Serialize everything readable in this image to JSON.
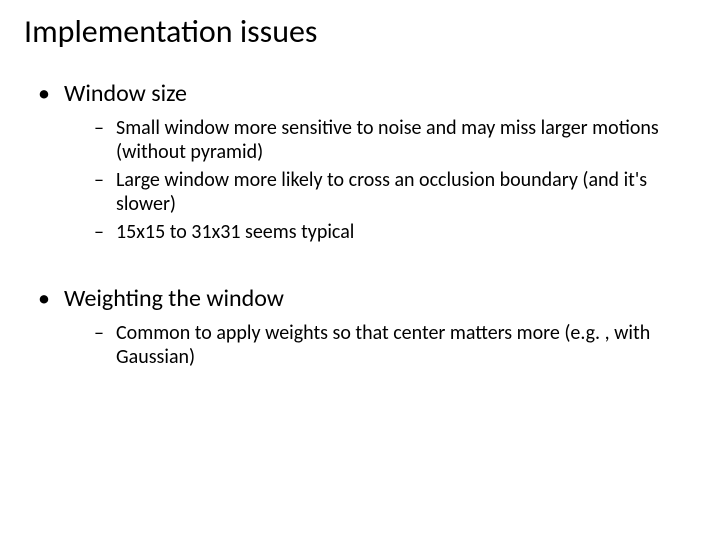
{
  "title": "Implementation issues",
  "bullets": [
    {
      "text": "Window size",
      "sub": [
        "Small window more sensitive to noise and may miss larger motions (without pyramid)",
        "Large window more likely to cross an occlusion boundary (and it's slower)",
        "15x15 to 31x31 seems typical"
      ]
    },
    {
      "text": "Weighting the window",
      "sub": [
        "Common to apply weights so that center matters more (e.g. , with Gaussian)"
      ]
    }
  ],
  "style": {
    "background_color": "#ffffff",
    "text_color": "#000000",
    "title_fontsize": 32,
    "l1_fontsize": 24,
    "l2_fontsize": 20,
    "font_family": "Calibri"
  }
}
